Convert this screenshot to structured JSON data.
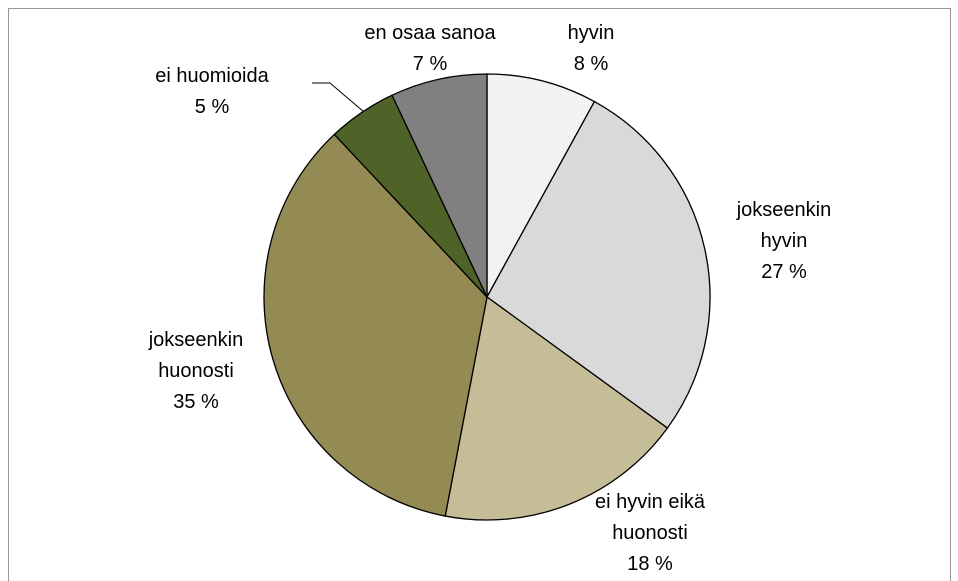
{
  "chart_data": {
    "type": "pie",
    "categories": [
      "hyvin",
      "jokseenkin hyvin",
      "ei hyvin eikä huonosti",
      "jokseenkin huonosti",
      "ei huomioida",
      "en osaa sanoa"
    ],
    "values": [
      8,
      27,
      18,
      35,
      5,
      7
    ],
    "value_labels": [
      "8 %",
      "27 %",
      "18 %",
      "35 %",
      "5 %",
      "7 %"
    ],
    "colors": [
      "#f2f2f2",
      "#d9d9d9",
      "#c4bd97",
      "#948a54",
      "#4f6228",
      "#808080"
    ]
  }
}
